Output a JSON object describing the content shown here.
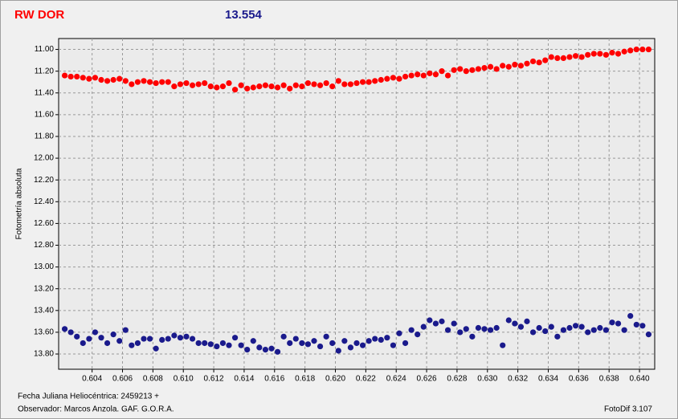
{
  "chart_data": {
    "type": "scatter",
    "title": "RW DOR",
    "subtitle": "13.554",
    "title_color": "#ff0000",
    "subtitle_color": "#1a1a8c",
    "y_label": "Fotometría absoluta",
    "footer_left_1": "Fecha Juliana Heliocéntrica: 2459213 +",
    "footer_left_2": "Observador:  Marcos Anzola. GAF. G.O.R.A.",
    "footer_right": "FotoDif 3.107",
    "grid": true,
    "invert_y": true,
    "xlim": [
      0.6018,
      0.641
    ],
    "ylim": [
      10.9,
      13.94
    ],
    "xticks": [
      0.604,
      0.606,
      0.608,
      {
        "value": 0.61,
        "label": "0.610"
      },
      0.612,
      0.614,
      0.616,
      0.618,
      {
        "value": 0.62,
        "label": "0.620"
      },
      0.622,
      0.624,
      0.626,
      0.628,
      {
        "value": 0.63,
        "label": "0.630"
      },
      0.632,
      0.634,
      0.636,
      0.638,
      {
        "value": 0.64,
        "label": "0.640"
      }
    ],
    "yticks": [
      {
        "value": 11,
        "label": "11.00"
      },
      {
        "value": 11.2,
        "label": "11.20"
      },
      {
        "value": 11.4,
        "label": "11.40"
      },
      {
        "value": 11.6,
        "label": "11.60"
      },
      {
        "value": 11.8,
        "label": "11.80"
      },
      {
        "value": 12,
        "label": "12.00"
      },
      {
        "value": 12.2,
        "label": "12.20"
      },
      {
        "value": 12.4,
        "label": "12.40"
      },
      {
        "value": 12.6,
        "label": "12.60"
      },
      {
        "value": 12.8,
        "label": "12.80"
      },
      {
        "value": 13,
        "label": "13.00"
      },
      {
        "value": 13.2,
        "label": "13.20"
      },
      {
        "value": 13.4,
        "label": "13.40"
      },
      {
        "value": 13.6,
        "label": "13.60"
      },
      {
        "value": 13.8,
        "label": "13.80"
      }
    ],
    "x": [
      0.6022,
      0.6026,
      0.603,
      0.6034,
      0.6038,
      0.6042,
      0.6046,
      0.605,
      0.6054,
      0.6058,
      0.6062,
      0.6066,
      0.607,
      0.6074,
      0.6078,
      0.6082,
      0.6086,
      0.609,
      0.6094,
      0.6098,
      0.6102,
      0.6106,
      0.611,
      0.6114,
      0.6118,
      0.6122,
      0.6126,
      0.613,
      0.6134,
      0.6138,
      0.6142,
      0.6146,
      0.615,
      0.6154,
      0.6158,
      0.6162,
      0.6166,
      0.617,
      0.6174,
      0.6178,
      0.6182,
      0.6186,
      0.619,
      0.6194,
      0.6198,
      0.6202,
      0.6206,
      0.621,
      0.6214,
      0.6218,
      0.6222,
      0.6226,
      0.623,
      0.6234,
      0.6238,
      0.6242,
      0.6246,
      0.625,
      0.6254,
      0.6258,
      0.6262,
      0.6266,
      0.627,
      0.6274,
      0.6278,
      0.6282,
      0.6286,
      0.629,
      0.6294,
      0.6298,
      0.6302,
      0.6306,
      0.631,
      0.6314,
      0.6318,
      0.6322,
      0.6326,
      0.633,
      0.6334,
      0.6338,
      0.6342,
      0.6346,
      0.635,
      0.6354,
      0.6358,
      0.6362,
      0.6366,
      0.637,
      0.6374,
      0.6378,
      0.6382,
      0.6386,
      0.639,
      0.6394,
      0.6398,
      0.6402,
      0.6406
    ],
    "series": [
      {
        "color": "#ff0000",
        "values": [
          11.24,
          11.25,
          11.25,
          11.26,
          11.27,
          11.26,
          11.28,
          11.29,
          11.28,
          11.27,
          11.29,
          11.32,
          11.3,
          11.29,
          11.3,
          11.31,
          11.3,
          11.3,
          11.34,
          11.32,
          11.31,
          11.33,
          11.32,
          11.31,
          11.34,
          11.35,
          11.34,
          11.31,
          11.37,
          11.33,
          11.36,
          11.35,
          11.34,
          11.33,
          11.34,
          11.35,
          11.33,
          11.36,
          11.33,
          11.34,
          11.31,
          11.32,
          11.33,
          11.31,
          11.34,
          11.29,
          11.32,
          11.32,
          11.31,
          11.3,
          11.3,
          11.29,
          11.28,
          11.27,
          11.26,
          11.27,
          11.25,
          11.24,
          11.23,
          11.24,
          11.22,
          11.23,
          11.2,
          11.24,
          11.19,
          11.18,
          11.2,
          11.19,
          11.18,
          11.17,
          11.16,
          11.18,
          11.15,
          11.16,
          11.14,
          11.15,
          11.13,
          11.11,
          11.12,
          11.1,
          11.07,
          11.08,
          11.08,
          11.07,
          11.06,
          11.07,
          11.05,
          11.04,
          11.04,
          11.05,
          11.03,
          11.04,
          11.02,
          11.01,
          11.0,
          11.0,
          11.0
        ]
      },
      {
        "color": "#1a1a8c",
        "values": [
          13.57,
          13.6,
          13.64,
          13.7,
          13.66,
          13.6,
          13.65,
          13.7,
          13.62,
          13.68,
          13.58,
          13.72,
          13.7,
          13.66,
          13.66,
          13.75,
          13.67,
          13.66,
          13.63,
          13.65,
          13.64,
          13.66,
          13.7,
          13.7,
          13.71,
          13.73,
          13.7,
          13.72,
          13.65,
          13.72,
          13.76,
          13.68,
          13.74,
          13.76,
          13.75,
          13.78,
          13.64,
          13.7,
          13.66,
          13.7,
          13.71,
          13.68,
          13.73,
          13.64,
          13.7,
          13.77,
          13.68,
          13.74,
          13.7,
          13.72,
          13.68,
          13.66,
          13.67,
          13.65,
          13.72,
          13.61,
          13.7,
          13.58,
          13.62,
          13.55,
          13.49,
          13.52,
          13.5,
          13.58,
          13.52,
          13.6,
          13.57,
          13.64,
          13.56,
          13.57,
          13.58,
          13.56,
          13.72,
          13.49,
          13.52,
          13.55,
          13.5,
          13.6,
          13.56,
          13.59,
          13.55,
          13.64,
          13.58,
          13.56,
          13.54,
          13.55,
          13.6,
          13.58,
          13.56,
          13.58,
          13.51,
          13.52,
          13.58,
          13.45,
          13.53,
          13.54,
          13.62
        ]
      }
    ]
  }
}
